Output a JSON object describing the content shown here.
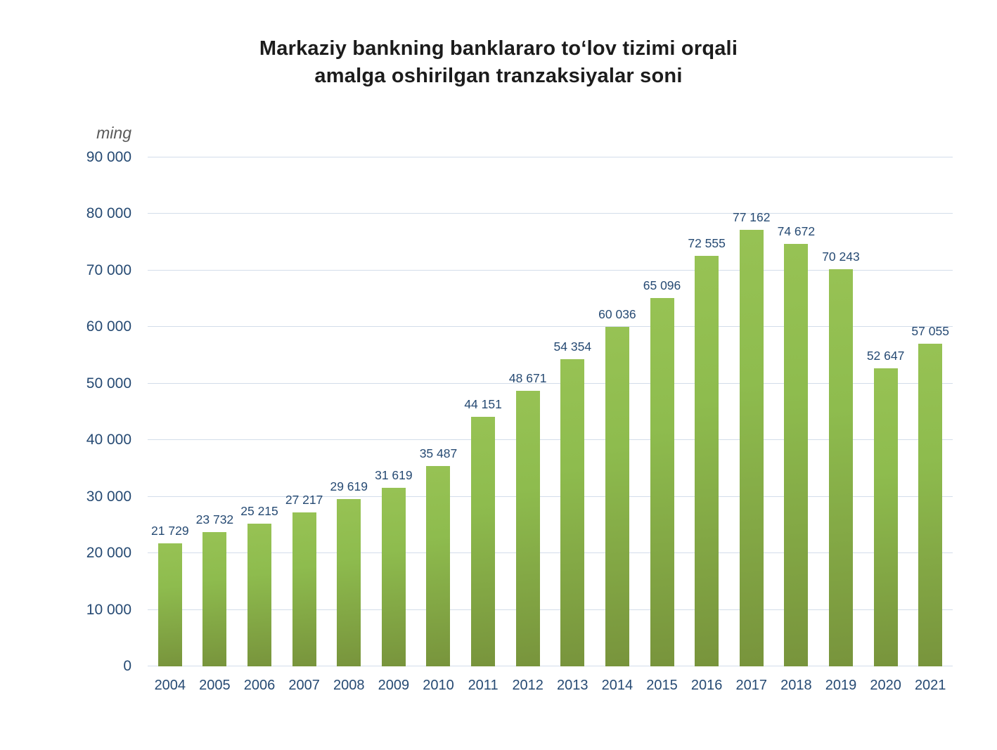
{
  "chart_data": {
    "type": "bar",
    "title": "Markaziy bankning banklararo to‘lov tizimi orqali amalga oshirilgan tranzaksiyalar soni",
    "unit_label": "ming",
    "categories": [
      "2004",
      "2005",
      "2006",
      "2007",
      "2008",
      "2009",
      "2010",
      "2011",
      "2012",
      "2013",
      "2014",
      "2015",
      "2016",
      "2017",
      "2018",
      "2019",
      "2020",
      "2021"
    ],
    "values": [
      21729,
      23732,
      25215,
      27217,
      29619,
      31619,
      35487,
      44151,
      48671,
      54354,
      60036,
      65096,
      72555,
      77162,
      74672,
      70243,
      52647,
      57055
    ],
    "data_labels": [
      "21 729",
      "23 732",
      "25 215",
      "27 217",
      "29 619",
      "31 619",
      "35 487",
      "44 151",
      "48 671",
      "54 354",
      "60 036",
      "65 096",
      "72 555",
      "77 162",
      "74 672",
      "70 243",
      "52 647",
      "57 055"
    ],
    "xlabel": "",
    "ylabel": "ming",
    "ylim": [
      0,
      90000
    ],
    "ytick_step": 10000,
    "ytick_labels": [
      "0",
      "10 000",
      "20 000",
      "30 000",
      "40 000",
      "50 000",
      "60 000",
      "70 000",
      "80 000",
      "90 000"
    ],
    "grid": true,
    "legend": "none",
    "colors": {
      "bar_gradient_top": "#97c254",
      "bar_gradient_mid": "#8ebc4e",
      "bar_gradient_bottom": "#78943c",
      "gridline": "#d3ddea",
      "axis_text": "#264a73",
      "title_text": "#1c1c1c",
      "unit_text": "#5a5a5a"
    }
  }
}
